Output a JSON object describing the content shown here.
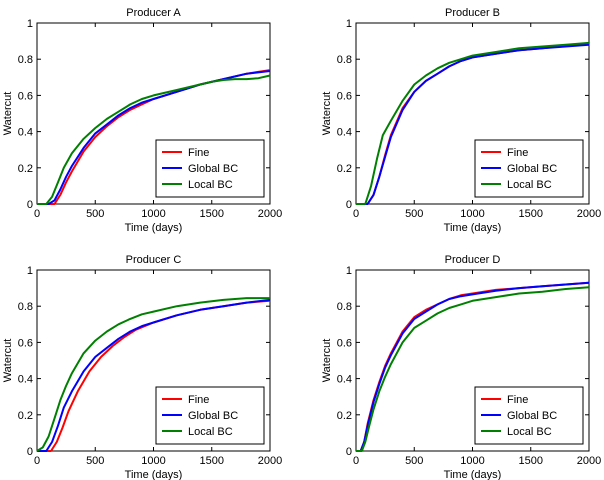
{
  "chart_data": [
    {
      "type": "line",
      "title": "Producer A",
      "xlabel": "Time (days)",
      "ylabel": "Watercut",
      "xlim": [
        0,
        2000
      ],
      "ylim": [
        0,
        1
      ],
      "xticks": [
        0,
        500,
        1000,
        1500,
        2000
      ],
      "yticks": [
        0,
        0.2,
        0.4,
        0.6,
        0.8,
        1
      ],
      "ytick_labels": [
        "0",
        "0.2",
        "0.4",
        "0.6",
        "0.8",
        "1"
      ],
      "legend_position": "lower-right",
      "series": [
        {
          "name": "Fine",
          "color": "#ff0000",
          "x": [
            0,
            150,
            200,
            250,
            300,
            400,
            500,
            600,
            700,
            800,
            900,
            1000,
            1200,
            1400,
            1600,
            1800,
            2000
          ],
          "y": [
            0,
            0,
            0.05,
            0.12,
            0.18,
            0.29,
            0.37,
            0.43,
            0.48,
            0.52,
            0.55,
            0.58,
            0.62,
            0.66,
            0.69,
            0.72,
            0.74
          ]
        },
        {
          "name": "Global BC",
          "color": "#0000ff",
          "x": [
            0,
            100,
            150,
            200,
            250,
            300,
            400,
            500,
            600,
            700,
            800,
            900,
            1000,
            1200,
            1400,
            1600,
            1800,
            2000
          ],
          "y": [
            0,
            0,
            0.02,
            0.08,
            0.15,
            0.21,
            0.31,
            0.39,
            0.44,
            0.49,
            0.53,
            0.56,
            0.58,
            0.62,
            0.66,
            0.69,
            0.72,
            0.735
          ]
        },
        {
          "name": "Local BC",
          "color": "#008000",
          "x": [
            0,
            80,
            130,
            180,
            230,
            300,
            400,
            500,
            600,
            700,
            800,
            900,
            1000,
            1200,
            1400,
            1500,
            1600,
            1700,
            1800,
            1900,
            2000
          ],
          "y": [
            0,
            0,
            0.04,
            0.12,
            0.2,
            0.28,
            0.36,
            0.42,
            0.47,
            0.51,
            0.55,
            0.58,
            0.6,
            0.63,
            0.66,
            0.675,
            0.685,
            0.69,
            0.69,
            0.695,
            0.71
          ]
        }
      ]
    },
    {
      "type": "line",
      "title": "Producer B",
      "xlabel": "Time (days)",
      "ylabel": "Watercut",
      "xlim": [
        0,
        2000
      ],
      "ylim": [
        0,
        1
      ],
      "xticks": [
        0,
        500,
        1000,
        1500,
        2000
      ],
      "yticks": [
        0,
        0.2,
        0.4,
        0.6,
        0.8,
        1
      ],
      "ytick_labels": [
        "0",
        "0.2",
        "0.4",
        "0.6",
        "0.8",
        "1"
      ],
      "legend_position": "lower-right",
      "series": [
        {
          "name": "Fine",
          "color": "#ff0000",
          "x": [
            0,
            100,
            150,
            200,
            250,
            300,
            400,
            500,
            600,
            700,
            800,
            900,
            1000,
            1200,
            1400,
            1600,
            1800,
            2000
          ],
          "y": [
            0,
            0,
            0.05,
            0.15,
            0.27,
            0.38,
            0.53,
            0.62,
            0.68,
            0.72,
            0.76,
            0.79,
            0.81,
            0.83,
            0.85,
            0.86,
            0.875,
            0.885
          ]
        },
        {
          "name": "Global BC",
          "color": "#0000ff",
          "x": [
            0,
            100,
            150,
            200,
            250,
            300,
            400,
            500,
            600,
            700,
            800,
            900,
            1000,
            1200,
            1400,
            1600,
            1800,
            2000
          ],
          "y": [
            0,
            0,
            0.05,
            0.15,
            0.26,
            0.37,
            0.52,
            0.62,
            0.68,
            0.72,
            0.76,
            0.79,
            0.81,
            0.83,
            0.85,
            0.86,
            0.87,
            0.88
          ]
        },
        {
          "name": "Local BC",
          "color": "#008000",
          "x": [
            0,
            80,
            130,
            180,
            230,
            300,
            400,
            500,
            600,
            700,
            800,
            900,
            1000,
            1200,
            1400,
            1600,
            1800,
            2000
          ],
          "y": [
            0,
            0,
            0.1,
            0.25,
            0.38,
            0.46,
            0.57,
            0.66,
            0.71,
            0.75,
            0.78,
            0.8,
            0.82,
            0.84,
            0.86,
            0.87,
            0.88,
            0.89
          ]
        }
      ]
    },
    {
      "type": "line",
      "title": "Producer C",
      "xlabel": "Time (days)",
      "ylabel": "Watercut",
      "xlim": [
        0,
        2000
      ],
      "ylim": [
        0,
        1
      ],
      "xticks": [
        0,
        500,
        1000,
        1500,
        2000
      ],
      "yticks": [
        0,
        0.2,
        0.4,
        0.6,
        0.8,
        1
      ],
      "ytick_labels": [
        "0",
        "0.2",
        "0.4",
        "0.6",
        "0.8",
        "1"
      ],
      "legend_position": "lower-right",
      "series": [
        {
          "name": "Fine",
          "color": "#ff0000",
          "x": [
            0,
            120,
            170,
            220,
            270,
            350,
            450,
            550,
            650,
            750,
            850,
            1000,
            1200,
            1400,
            1600,
            1800,
            2000
          ],
          "y": [
            0,
            0,
            0.05,
            0.13,
            0.22,
            0.33,
            0.44,
            0.52,
            0.58,
            0.63,
            0.67,
            0.71,
            0.75,
            0.78,
            0.8,
            0.82,
            0.83
          ]
        },
        {
          "name": "Global BC",
          "color": "#0000ff",
          "x": [
            0,
            80,
            130,
            180,
            230,
            300,
            400,
            500,
            600,
            700,
            800,
            900,
            1000,
            1200,
            1400,
            1600,
            1800,
            2000
          ],
          "y": [
            0,
            0,
            0.05,
            0.14,
            0.24,
            0.33,
            0.44,
            0.52,
            0.57,
            0.62,
            0.66,
            0.69,
            0.71,
            0.75,
            0.78,
            0.8,
            0.82,
            0.835
          ]
        },
        {
          "name": "Local BC",
          "color": "#008000",
          "x": [
            0,
            50,
            100,
            150,
            200,
            250,
            300,
            400,
            500,
            600,
            700,
            800,
            900,
            1000,
            1200,
            1400,
            1600,
            1800,
            2000
          ],
          "y": [
            0,
            0.02,
            0.08,
            0.18,
            0.28,
            0.36,
            0.43,
            0.54,
            0.61,
            0.66,
            0.7,
            0.73,
            0.755,
            0.77,
            0.8,
            0.82,
            0.835,
            0.845,
            0.845
          ]
        }
      ]
    },
    {
      "type": "line",
      "title": "Producer D",
      "xlabel": "Time (days)",
      "ylabel": "Watercut",
      "xlim": [
        0,
        2000
      ],
      "ylim": [
        0,
        1
      ],
      "xticks": [
        0,
        500,
        1000,
        1500,
        2000
      ],
      "yticks": [
        0,
        0.2,
        0.4,
        0.6,
        0.8,
        1
      ],
      "ytick_labels": [
        "0",
        "0.2",
        "0.4",
        "0.6",
        "0.8",
        "1"
      ],
      "legend_position": "lower-right",
      "series": [
        {
          "name": "Fine",
          "color": "#ff0000",
          "x": [
            0,
            40,
            70,
            100,
            150,
            200,
            250,
            300,
            400,
            500,
            600,
            700,
            800,
            900,
            1000,
            1200,
            1400,
            1600,
            1800,
            2000
          ],
          "y": [
            0,
            0,
            0.05,
            0.15,
            0.28,
            0.38,
            0.47,
            0.54,
            0.66,
            0.74,
            0.78,
            0.81,
            0.84,
            0.86,
            0.87,
            0.89,
            0.9,
            0.91,
            0.92,
            0.93
          ]
        },
        {
          "name": "Global BC",
          "color": "#0000ff",
          "x": [
            0,
            40,
            70,
            100,
            150,
            200,
            250,
            300,
            400,
            500,
            600,
            700,
            800,
            900,
            1000,
            1200,
            1400,
            1600,
            1800,
            2000
          ],
          "y": [
            0,
            0,
            0.05,
            0.14,
            0.27,
            0.37,
            0.46,
            0.53,
            0.65,
            0.73,
            0.77,
            0.81,
            0.84,
            0.855,
            0.865,
            0.885,
            0.9,
            0.91,
            0.92,
            0.93
          ]
        },
        {
          "name": "Local BC",
          "color": "#008000",
          "x": [
            0,
            50,
            80,
            110,
            150,
            200,
            250,
            300,
            400,
            500,
            600,
            700,
            800,
            900,
            1000,
            1200,
            1400,
            1600,
            1800,
            2000
          ],
          "y": [
            0,
            0,
            0.05,
            0.13,
            0.23,
            0.33,
            0.41,
            0.48,
            0.6,
            0.68,
            0.72,
            0.76,
            0.79,
            0.81,
            0.83,
            0.85,
            0.87,
            0.88,
            0.895,
            0.905
          ]
        }
      ]
    }
  ]
}
